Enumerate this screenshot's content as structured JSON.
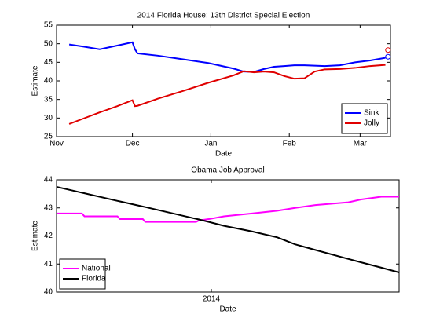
{
  "chart_data": [
    {
      "type": "line",
      "title": "2014 Florida House: 13th District Special Election",
      "xlabel": "Date",
      "ylabel": "Estimate",
      "x": [
        5,
        10,
        17,
        24,
        30,
        31,
        32,
        40,
        50,
        60,
        70,
        74,
        78,
        82,
        86,
        90,
        94,
        98,
        102,
        106,
        112,
        118,
        124,
        130
      ],
      "series": [
        {
          "name": "Sink",
          "color": "#0000ff",
          "values": [
            49.8,
            49.3,
            48.5,
            49.5,
            50.4,
            48.5,
            47.4,
            46.8,
            45.8,
            44.8,
            43.3,
            42.5,
            42.4,
            43.2,
            43.8,
            44.0,
            44.2,
            44.2,
            44.1,
            44.0,
            44.2,
            45,
            45.5,
            46.2
          ],
          "final": {
            "x": 131,
            "value": 46.5
          }
        },
        {
          "name": "Jolly",
          "color": "#e00000",
          "values": [
            28.4,
            29.7,
            31.5,
            33.2,
            34.8,
            33.2,
            33.3,
            35.2,
            37.3,
            39.5,
            41.5,
            42.6,
            42.3,
            42.5,
            42.3,
            41.3,
            40.6,
            40.7,
            42.5,
            43.1,
            43.2,
            43.5,
            44,
            44.3
          ],
          "final": {
            "x": 131,
            "value": 48.3
          }
        }
      ],
      "xlim": [
        0,
        132
      ],
      "xticks": [
        {
          "value": 0,
          "label": "Nov"
        },
        {
          "value": 30,
          "label": "Dec"
        },
        {
          "value": 61,
          "label": "Jan"
        },
        {
          "value": 92,
          "label": "Feb"
        },
        {
          "value": 120,
          "label": "Mar"
        }
      ],
      "ylim": [
        25,
        55
      ],
      "yticks": [
        25,
        30,
        35,
        40,
        45,
        50,
        55
      ],
      "legend": "lower right"
    },
    {
      "type": "line",
      "title": "Obama Job Approval",
      "xlabel": "Date",
      "ylabel": "Estimate",
      "x": [
        0,
        10,
        11,
        24,
        25,
        34,
        35,
        55,
        56,
        60,
        66,
        77,
        87,
        94,
        102,
        115,
        120,
        128,
        135
      ],
      "series": [
        {
          "name": "National",
          "color": "#ff00ff",
          "values": [
            42.8,
            42.8,
            42.7,
            42.7,
            42.6,
            42.6,
            42.5,
            42.5,
            42.55,
            42.6,
            42.7,
            42.8,
            42.9,
            43.0,
            43.1,
            43.2,
            43.3,
            43.4,
            43.4
          ]
        },
        {
          "name": "Florida",
          "color": "#000000",
          "values": [
            43.75,
            43.54,
            43.52,
            43.25,
            43.23,
            43.05,
            43.03,
            42.61,
            42.59,
            42.5,
            42.36,
            42.16,
            41.95,
            41.7,
            41.5,
            41.18,
            41.06,
            40.87,
            40.7
          ]
        }
      ],
      "xlim": [
        0,
        135
      ],
      "xticks": [
        {
          "value": 61,
          "label": "2014"
        }
      ],
      "ylim": [
        40,
        44
      ],
      "yticks": [
        40,
        41,
        42,
        43,
        44
      ],
      "legend": "lower left"
    }
  ]
}
